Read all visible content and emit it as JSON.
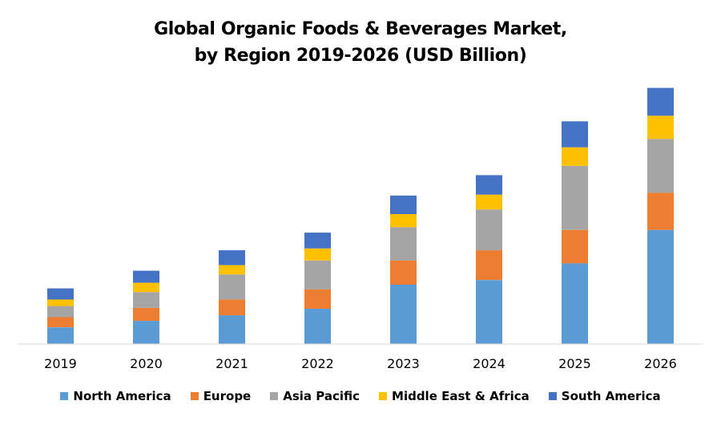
{
  "chart_data": {
    "type": "bar",
    "stacked": true,
    "title_lines": [
      "Global Organic Foods & Beverages Market,",
      "by Region 2019-2026 (USD Billion)"
    ],
    "xlabel": "",
    "ylabel": "",
    "grid": false,
    "legend_position": "bottom",
    "categories": [
      "2019",
      "2020",
      "2021",
      "2022",
      "2023",
      "2024",
      "2025",
      "2026"
    ],
    "series": [
      {
        "name": "North America",
        "color": "#5B9BD5",
        "values": [
          18,
          25,
          31,
          38,
          64,
          69,
          87,
          123
        ]
      },
      {
        "name": "Europe",
        "color": "#ED7D31",
        "values": [
          11,
          14,
          17,
          21,
          26,
          32,
          36,
          40
        ]
      },
      {
        "name": "Asia Pacific",
        "color": "#A5A5A5",
        "values": [
          12,
          17,
          27,
          31,
          36,
          44,
          69,
          58
        ]
      },
      {
        "name": "Middle East & Africa",
        "color": "#FFC000",
        "values": [
          7,
          10,
          10,
          13,
          14,
          16,
          20,
          25
        ]
      },
      {
        "name": "South America",
        "color": "#4472C4",
        "values": [
          12,
          13,
          16,
          17,
          20,
          21,
          28,
          30
        ]
      }
    ],
    "ylim": [
      0,
      280
    ]
  }
}
